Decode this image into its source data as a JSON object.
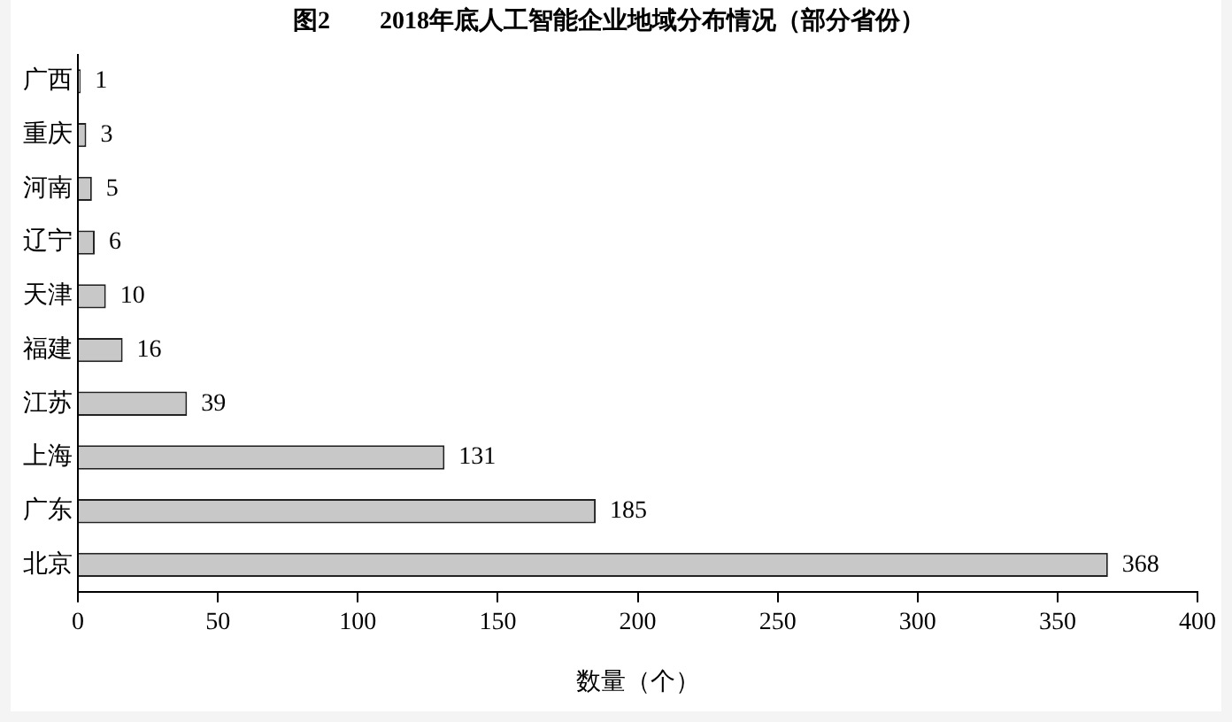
{
  "chart_data": {
    "type": "bar",
    "orientation": "horizontal",
    "title": "图2　　2018年底人工智能企业地域分布情况（部分省份）",
    "xlabel": "数量（个）",
    "categories": [
      "广西",
      "重庆",
      "河南",
      "辽宁",
      "天津",
      "福建",
      "江苏",
      "上海",
      "广东",
      "北京"
    ],
    "values": [
      1,
      3,
      5,
      6,
      10,
      16,
      39,
      131,
      185,
      368
    ],
    "color": "#c8c8c8",
    "xlim": [
      0,
      400
    ],
    "xticks": [
      0,
      50,
      100,
      150,
      200,
      250,
      300,
      350,
      400
    ],
    "data_labels": true,
    "grid": false,
    "legend": false
  }
}
